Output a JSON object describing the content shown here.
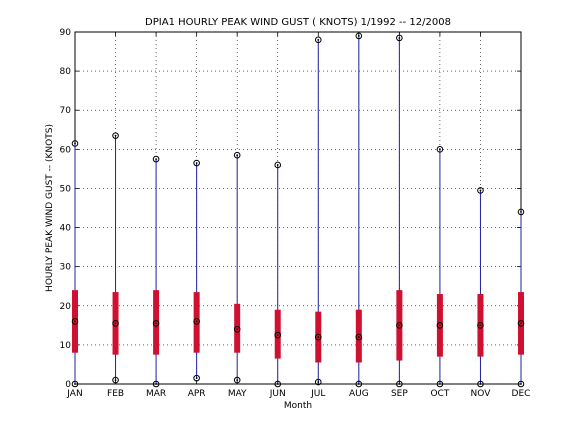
{
  "chart_data": {
    "type": "box",
    "title": "DPIA1  HOURLY PEAK WIND GUST ( KNOTS) 1/1992 -- 12/2008",
    "xlabel": "Month",
    "ylabel": "HOURLY PEAK WIND GUST -- (KNOTS)",
    "ylim": [
      0,
      90
    ],
    "yticks": [
      0,
      10,
      20,
      30,
      40,
      50,
      60,
      70,
      80,
      90
    ],
    "grid": true,
    "categories": [
      "JAN",
      "FEB",
      "MAR",
      "APR",
      "MAY",
      "JUN",
      "JUL",
      "AUG",
      "SEP",
      "OCT",
      "NOV",
      "DEC"
    ],
    "series": [
      {
        "min": 0,
        "q1": 8.0,
        "median": 16.0,
        "q3": 24.0,
        "max": 61.5
      },
      {
        "min": 1.0,
        "q1": 7.5,
        "median": 15.5,
        "q3": 23.5,
        "max": 63.5
      },
      {
        "min": 0,
        "q1": 7.5,
        "median": 15.5,
        "q3": 24.0,
        "max": 57.5
      },
      {
        "min": 1.5,
        "q1": 8.0,
        "median": 16.0,
        "q3": 23.5,
        "max": 56.5
      },
      {
        "min": 1.0,
        "q1": 8.0,
        "median": 14.0,
        "q3": 20.5,
        "max": 58.5
      },
      {
        "min": 0,
        "q1": 6.5,
        "median": 12.5,
        "q3": 19.0,
        "max": 56.0
      },
      {
        "min": 0.5,
        "q1": 5.5,
        "median": 12.0,
        "q3": 18.5,
        "max": 88.0
      },
      {
        "min": 0,
        "q1": 5.5,
        "median": 12.0,
        "q3": 19.0,
        "max": 89.0
      },
      {
        "min": 0,
        "q1": 6.0,
        "median": 15.0,
        "q3": 24.0,
        "max": 88.5
      },
      {
        "min": 0,
        "q1": 7.0,
        "median": 15.0,
        "q3": 23.0,
        "max": 60.0
      },
      {
        "min": 0,
        "q1": 7.0,
        "median": 15.0,
        "q3": 23.0,
        "max": 49.5
      },
      {
        "min": 0,
        "q1": 7.5,
        "median": 15.5,
        "q3": 23.5,
        "max": 44.0
      }
    ],
    "colors": {
      "whisker": "#2020a0",
      "box": "#d01030",
      "marker": "#000000",
      "grid": "#000000"
    }
  }
}
